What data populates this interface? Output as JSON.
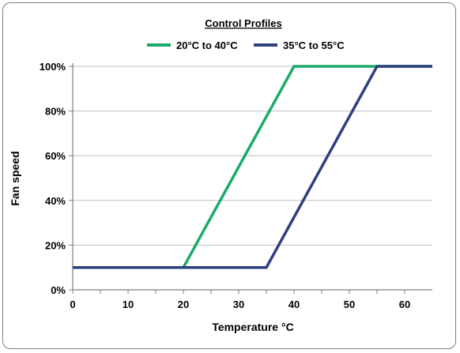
{
  "chart_data": {
    "type": "line",
    "title": "Control Profiles",
    "xlabel": "Temperature °C",
    "ylabel": "Fan speed",
    "xlim": [
      0,
      65
    ],
    "ylim": [
      0,
      100
    ],
    "x_ticks": [
      0,
      10,
      20,
      30,
      40,
      50,
      60
    ],
    "x_minor_ticks": [
      5,
      15,
      25,
      35,
      45,
      55
    ],
    "y_ticks": [
      0,
      20,
      40,
      60,
      80,
      100
    ],
    "y_tick_labels": [
      "0%",
      "20%",
      "40%",
      "60%",
      "80%",
      "100%"
    ],
    "grid": "horizontal",
    "legend_position": "top",
    "series": [
      {
        "name": "20°C to 40°C",
        "color": "#1aab6a",
        "x": [
          0,
          20,
          40,
          65
        ],
        "y": [
          10,
          10,
          100,
          100
        ]
      },
      {
        "name": "35°C to 55°C",
        "color": "#2e4080",
        "x": [
          0,
          35,
          55,
          65
        ],
        "y": [
          10,
          10,
          100,
          100
        ]
      }
    ]
  }
}
